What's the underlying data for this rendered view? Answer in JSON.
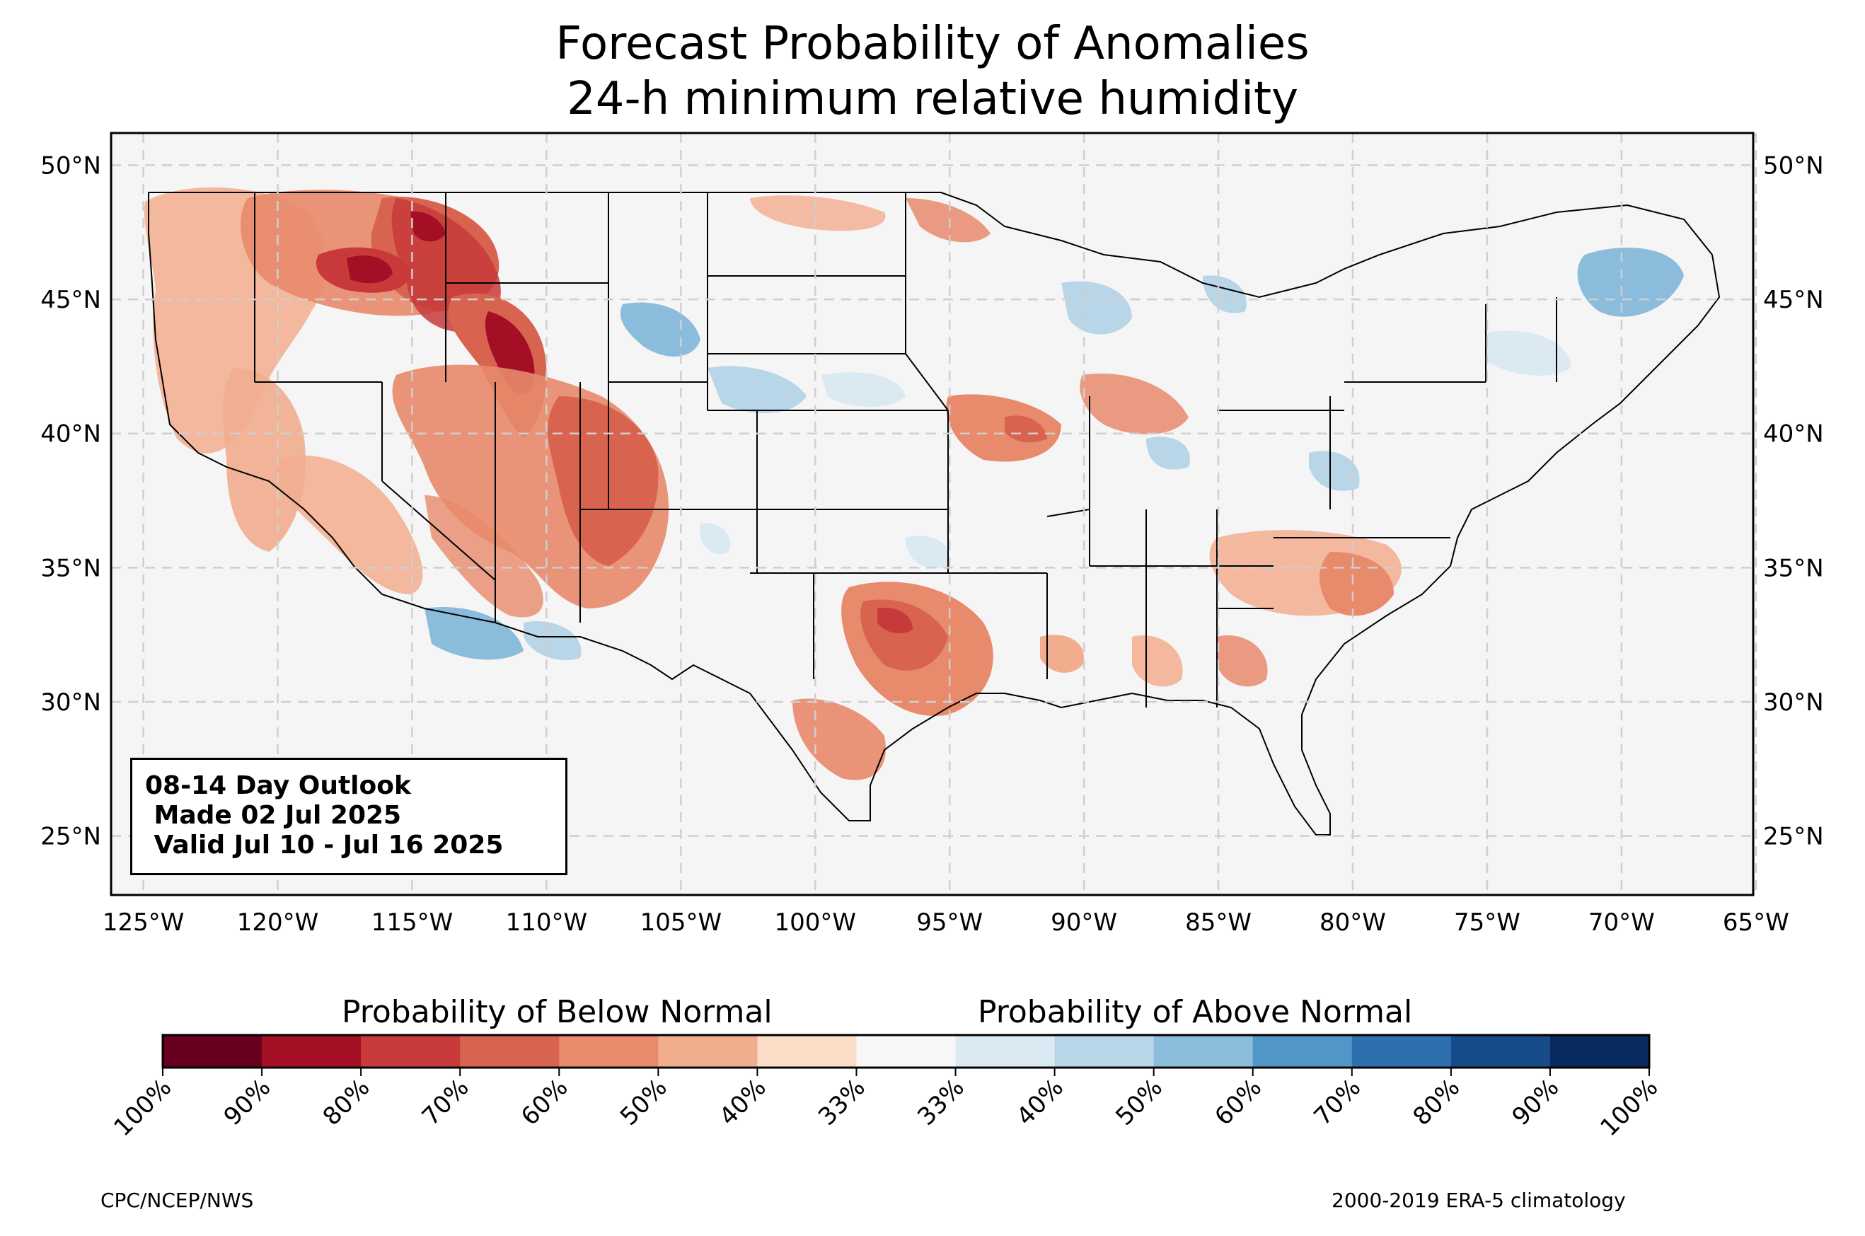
{
  "title_line1": "Forecast Probability of Anomalies",
  "title_line2": "24-h minimum relative humidity",
  "lat_labels": [
    "50°N",
    "45°N",
    "40°N",
    "35°N",
    "30°N",
    "25°N"
  ],
  "lat_values": [
    50,
    45,
    40,
    35,
    30,
    25
  ],
  "lon_labels": [
    "125°W",
    "120°W",
    "115°W",
    "110°W",
    "105°W",
    "100°W",
    "95°W",
    "90°W",
    "85°W",
    "80°W",
    "75°W",
    "70°W",
    "65°W"
  ],
  "lon_values": [
    -125,
    -120,
    -115,
    -110,
    -105,
    -100,
    -95,
    -90,
    -85,
    -80,
    -75,
    -70,
    -65
  ],
  "map_extent": {
    "lon_min": -126.2,
    "lon_max": -65.1,
    "lat_min": 22.8,
    "lat_max": 51.2
  },
  "outlook": {
    "line1": "08-14 Day Outlook",
    "line2": " Made 02 Jul 2025",
    "line3": " Valid Jul 10 - Jul 16 2025"
  },
  "colorbar": {
    "below_label": "Probability of Below Normal",
    "above_label": "Probability of Above Normal",
    "ticks": [
      "100%",
      "90%",
      "80%",
      "70%",
      "60%",
      "50%",
      "40%",
      "33%",
      "33%",
      "40%",
      "50%",
      "60%",
      "70%",
      "80%",
      "90%",
      "100%"
    ],
    "colors": [
      "#67001f",
      "#a50f25",
      "#c83a3a",
      "#d8634f",
      "#e88a6c",
      "#f2ad8e",
      "#fbdcc7",
      "#f7f7f7",
      "#dbe9f3",
      "#b9d5e8",
      "#8bbcdb",
      "#5097c7",
      "#2c70b0",
      "#174c8b",
      "#082a5e"
    ]
  },
  "credit_left": "CPC/NCEP/NWS",
  "credit_right": "2000-2019 ERA-5 climatology",
  "colors": {
    "land": "#f6f6f6",
    "grid": "#cfcfcf",
    "border": "#000000"
  }
}
